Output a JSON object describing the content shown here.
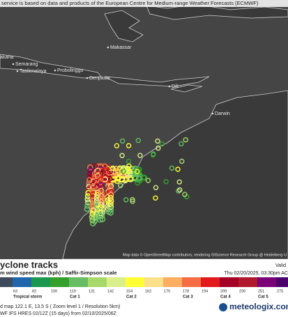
{
  "banner": "service is based on data and products of the European Centre for Medium-range Weather Forecasts (ECMWF)",
  "places": [
    "Makassar",
    "akarta",
    "Semarang",
    "Tasikmalaya",
    "Probolinggo",
    "Denpasar",
    "Dili",
    "Darwin"
  ],
  "attribution": "Map data © OpenStreetMap contributors, rendering GIScience Research Group @ Heidelberg U",
  "panel": {
    "title": "yclone tracks",
    "valid": "Valid",
    "subtitle": "m wind speed max (kph) / Saffir-Simpson scale",
    "datetime": "Thu 02/20/2025, 03:30pm AC",
    "legend": {
      "labels": [
        63,
        82,
        100,
        119,
        131,
        142,
        154,
        162,
        170,
        178,
        194,
        209,
        230,
        251,
        275
      ],
      "colors": [
        "#3d4b5c",
        "#2166ac",
        "#1a9850",
        "#33a02c",
        "#66bd63",
        "#a6d96a",
        "#d9ef8b",
        "#ffff33",
        "#fee08b",
        "#fdae61",
        "#f46d43",
        "#e31a1c",
        "#a50026",
        "#b2182b",
        "#7a0177",
        "#49006a"
      ],
      "categories": [
        "Tropical storm",
        "Cat 1",
        "Cat 2",
        "Cat 3",
        "Cat 4",
        "Cat 5"
      ]
    },
    "footer": [
      "d map 122.1 E, 13.5 S ( Zoom level 1 / Resolution 5km)",
      "WF IFS HRES 02/12Z (15 days) from 02/10/2025/06Z"
    ],
    "logo": "meteologix.com"
  }
}
